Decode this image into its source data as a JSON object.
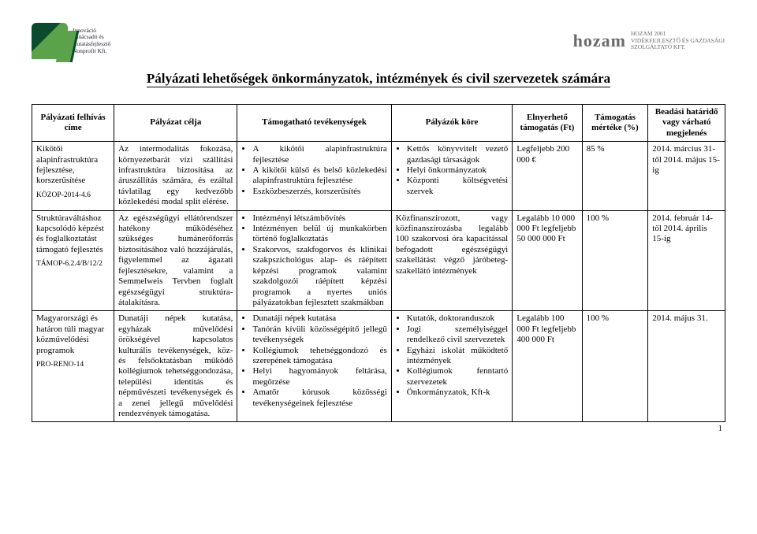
{
  "logo_left": {
    "line1": "Innováció",
    "line2": "Tanácsadó és",
    "line3": "Kutatásfejlesztő",
    "line4": "Nonprofit Kft."
  },
  "logo_right": {
    "brand": "hozam",
    "line1": "HOZAM 2001",
    "line2": "VIDÉKFEJLESZTŐ ÉS GAZDASÁGI",
    "line3": "SZOLGÁLTATÓ KFT."
  },
  "title": "Pályázati lehetőségek önkormányzatok, intézmények és civil szervezetek számára",
  "headers": {
    "c1": "Pályázati felhívás címe",
    "c2": "Pályázat célja",
    "c3": "Támogatható tevékenységek",
    "c4": "Pályázók köre",
    "c5": "Elnyerhető támogatás (Ft)",
    "c6": "Támogatás mértéke (%)",
    "c7": "Beadási határidő vagy várható megjelenés"
  },
  "rows": [
    {
      "name": "Kikötői alapinfrastruktúra fejlesztése, korszerűsítése",
      "code": "KÖZOP-2014-4.6",
      "purpose": "Az intermodalitás fokozása, környezetbarát vízi szállítási infrastruktúra biztosítása az áruszállítás számára, és ezáltal távlatilag egy kedvezőbb közlekedési modal split elérése.",
      "activities": [
        "A kikötői alapinfrastruktúra fejlesztése",
        "A kikötői külső és belső közlekedési alapinfrastruktúra fejlesztése",
        "Eszközbeszerzés, korszerűsítés"
      ],
      "applicants": [
        "Kettős könyvvitelt vezető gazdasági társaságok",
        "Helyi önkormányzatok",
        "Központi költségvetési szervek"
      ],
      "amount": "Legfeljebb 200 000 €",
      "rate": "85 %",
      "deadline": "2014. március 31-től 2014. május 15-ig"
    },
    {
      "name": "Struktúraváltáshoz kapcsolódó képzést és foglalkoztatást támogató fejlesztés",
      "code": "TÁMOP-6.2.4/B/12/2",
      "purpose": "Az egészségügyi ellátórendszer hatékony működéséhez szükséges humánerőforrás biztosításához való hozzájárulás, figyelemmel az ágazati fejlesztésekre, valamint a Semmelweis Tervben foglalt egészségügyi struktúra-átalakításra.",
      "activities": [
        "Intézményi létszámbővítés",
        "Intézményen belül új munkakörben történő foglalkoztatás",
        "Szakorvos, szakfogorvos és klinikai szakpszichológus alap- és ráépített képzési programok valamint szakdolgozói ráépített képzési programok a nyertes uniós pályázatokban fejlesztett szakmákban"
      ],
      "applicants_plain": "Közfinanszírozott, vagy közfinanszírozásba legalább 100 szakorvosi óra kapacitással befogadott egészségügyi szakellátást végző járóbeteg-szakellátó intézmények",
      "amount": "Legalább 10 000 000 Ft legfeljebb 50 000 000 Ft",
      "rate": "100 %",
      "deadline": "2014. február 14-től 2014. április 15-ig"
    },
    {
      "name": "Magyarországi és határon túli magyar közművelődési programok",
      "code": "PRO-RENO-14",
      "purpose": "Dunatáji népek kutatása, egyházak művelődési örökségével kapcsolatos kulturális tevékenységek, köz- és felsőoktatásban működő kollégiumok tehetséggondozása, települési identitás és népművészeti tevékenységek és a zenei jellegű művelődési rendezvények támogatása.",
      "activities": [
        "Dunatáji népek kutatása",
        "Tanórán kívüli közösségépítő jellegű tevékenységek",
        "Kollégiumok tehetséggondozó és szerepének támogatása",
        "Helyi hagyományok feltárása, megőrzése",
        "Amatőr kórusok közösségi tevékenységeinek fejlesztése"
      ],
      "applicants": [
        "Kutatók, doktoranduszok",
        "Jogi személyiséggel rendelkező civil szervezetek",
        "Egyházi iskolát működtető intézmények",
        "Kollégiumok fenntartó szervezetek",
        "Önkormányzatok, Kft-k"
      ],
      "amount": "Legalább 100 000 Ft legfeljebb 400 000 Ft",
      "rate": "100 %",
      "deadline": "2014. május 31."
    }
  ],
  "page_number": "1"
}
